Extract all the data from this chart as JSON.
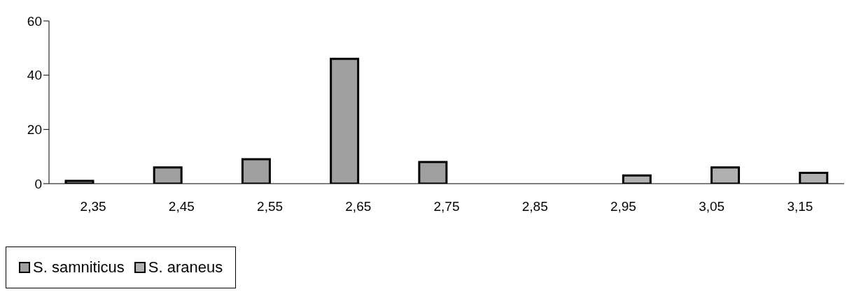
{
  "chart_data": {
    "type": "bar",
    "categories": [
      "2,35",
      "2,45",
      "2,55",
      "2,65",
      "2,75",
      "2,85",
      "2,95",
      "3,05",
      "3,15"
    ],
    "series": [
      {
        "name": "S. samniticus",
        "color": "#a0a0a0",
        "values": [
          1,
          6,
          9,
          46,
          8,
          null,
          null,
          null,
          null
        ]
      },
      {
        "name": "S. araneus",
        "color": "#b0b0b0",
        "values": [
          null,
          null,
          null,
          null,
          null,
          null,
          3,
          6,
          4
        ]
      }
    ],
    "ylim": [
      0,
      60
    ],
    "yticks": [
      0,
      20,
      40,
      60
    ],
    "grid": false,
    "legend": "bottom"
  }
}
